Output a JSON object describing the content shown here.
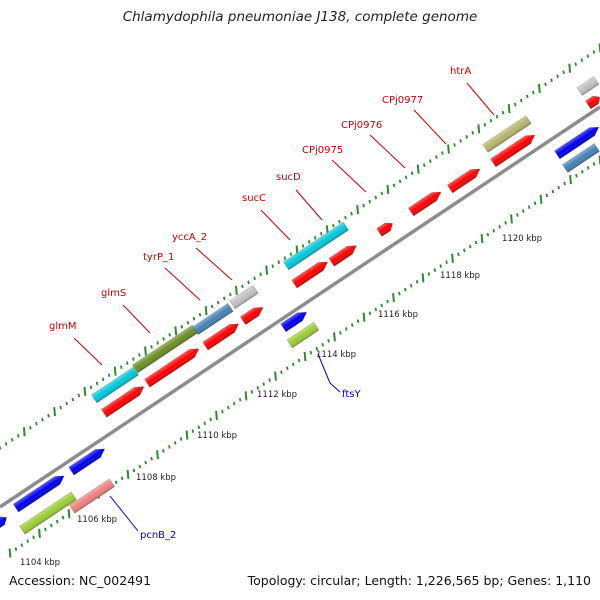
{
  "title": "Chlamydophila pneumoniae J138, complete genome",
  "footer": {
    "accession": "Accession: NC_002491",
    "stats": "Topology: circular; Length: 1,226,565 bp; Genes: 1,110"
  },
  "colors": {
    "backbone": "#8c8c8c",
    "tick": "#2e8b2e",
    "label_upper": "#cc0000",
    "label_lower": "#0000cc",
    "kbp_text": "#222222"
  },
  "axis": {
    "unit": "kbp",
    "ticks": [
      {
        "label": "1104 kbp"
      },
      {
        "label": "1106 kbp"
      },
      {
        "label": "1108 kbp"
      },
      {
        "label": "1110 kbp"
      },
      {
        "label": "1112 kbp"
      },
      {
        "label": "1114 kbp"
      },
      {
        "label": "1116 kbp"
      },
      {
        "label": "1118 kbp"
      },
      {
        "label": "1120 kbp"
      }
    ]
  },
  "upper_labels": [
    {
      "name": "glmM"
    },
    {
      "name": "glmS"
    },
    {
      "name": "tyrP_1"
    },
    {
      "name": "yccA_2"
    },
    {
      "name": "sucC"
    },
    {
      "name": "sucD"
    },
    {
      "name": "CPj0975"
    },
    {
      "name": "CPj0976"
    },
    {
      "name": "CPj0977"
    },
    {
      "name": "htrA"
    }
  ],
  "lower_labels": [
    {
      "name": "pcnB_2"
    },
    {
      "name": "ftsY"
    }
  ],
  "features": [
    {
      "color": "#00c8d8"
    },
    {
      "color": "#6b8e23"
    },
    {
      "color": "#4682b4"
    },
    {
      "color": "#c0c0c0"
    },
    {
      "color": "#ff0000"
    },
    {
      "color": "#0000ee"
    },
    {
      "color": "#9acd32"
    },
    {
      "color": "#f08080"
    },
    {
      "color": "#b5b56e"
    }
  ]
}
